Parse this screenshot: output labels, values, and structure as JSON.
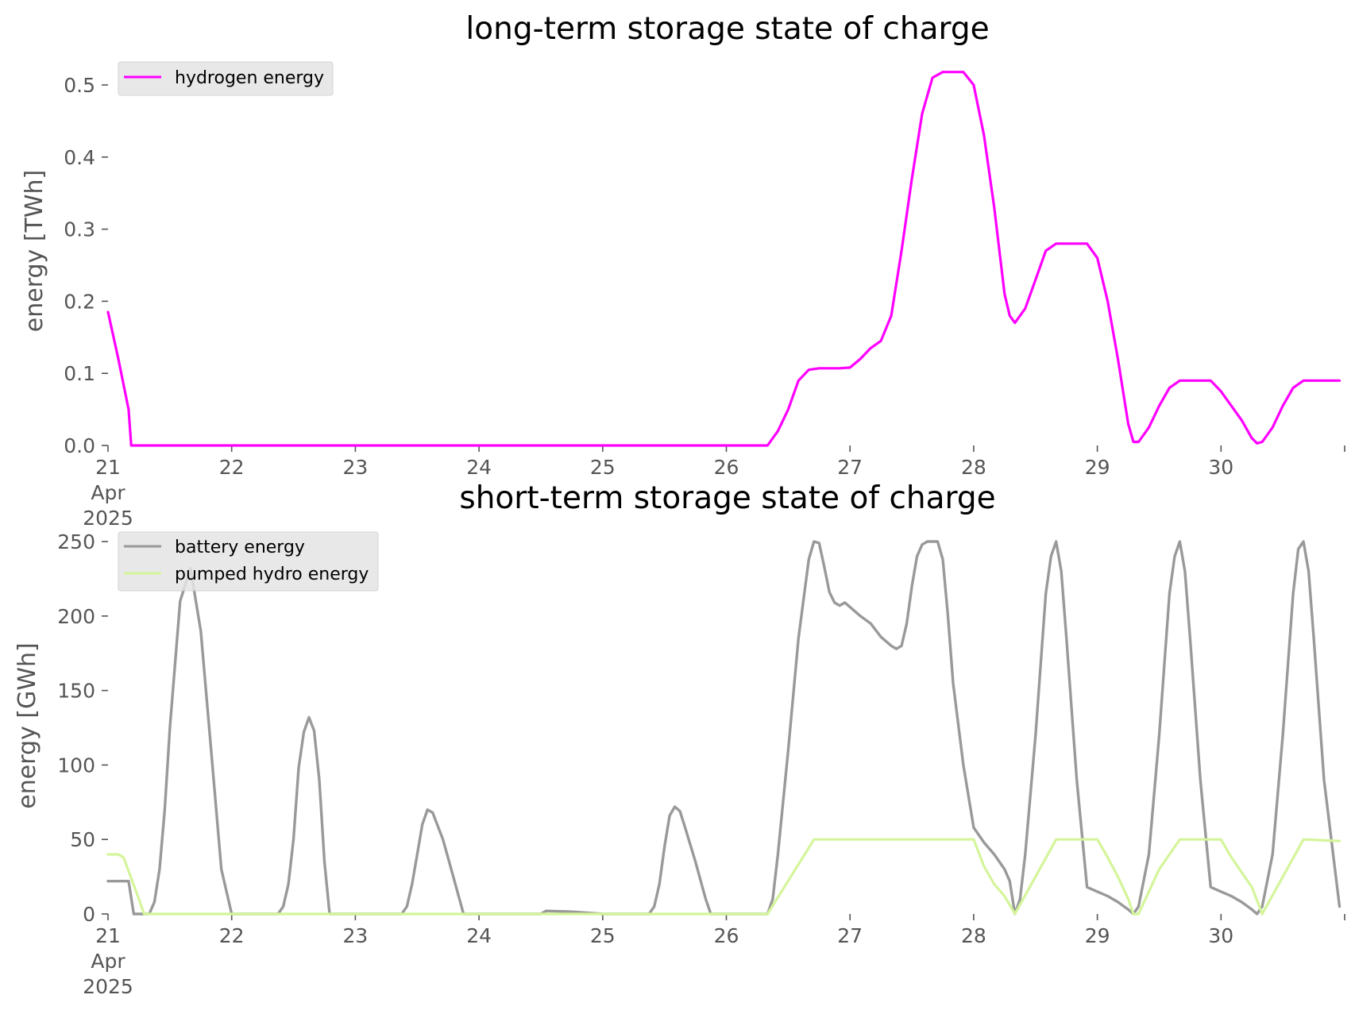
{
  "chart_data": [
    {
      "type": "line",
      "title": "long-term storage state of charge",
      "xlabel": "",
      "ylabel": "energy [TWh]",
      "x_ticks": [
        "21\nApr\n2025",
        "22",
        "23",
        "24",
        "25",
        "26",
        "27",
        "28",
        "29",
        "30"
      ],
      "xlim": [
        "2025-04-21 00:00",
        "2025-04-30 23:00"
      ],
      "ylim": [
        0,
        0.5
      ],
      "y_ticks": [
        "0.0",
        "0.1",
        "0.2",
        "0.3",
        "0.4",
        "0.5"
      ],
      "grid": false,
      "legend": "top-left",
      "series": [
        {
          "name": "hydrogen energy",
          "color": "#ff00ff",
          "points": [
            [
              "2025-04-21 00:00",
              0.185
            ],
            [
              "2025-04-21 02:00",
              0.12
            ],
            [
              "2025-04-21 04:00",
              0.05
            ],
            [
              "2025-04-21 04:30",
              0.0
            ],
            [
              "2025-04-26 08:00",
              0.0
            ],
            [
              "2025-04-26 10:00",
              0.02
            ],
            [
              "2025-04-26 12:00",
              0.05
            ],
            [
              "2025-04-26 14:00",
              0.09
            ],
            [
              "2025-04-26 16:00",
              0.105
            ],
            [
              "2025-04-26 18:00",
              0.107
            ],
            [
              "2025-04-26 20:00",
              0.107
            ],
            [
              "2025-04-26 22:00",
              0.107
            ],
            [
              "2025-04-27 00:00",
              0.108
            ],
            [
              "2025-04-27 02:00",
              0.12
            ],
            [
              "2025-04-27 04:00",
              0.135
            ],
            [
              "2025-04-27 06:00",
              0.145
            ],
            [
              "2025-04-27 08:00",
              0.18
            ],
            [
              "2025-04-27 10:00",
              0.27
            ],
            [
              "2025-04-27 12:00",
              0.37
            ],
            [
              "2025-04-27 14:00",
              0.46
            ],
            [
              "2025-04-27 16:00",
              0.51
            ],
            [
              "2025-04-27 18:00",
              0.518
            ],
            [
              "2025-04-27 20:00",
              0.518
            ],
            [
              "2025-04-27 22:00",
              0.518
            ],
            [
              "2025-04-28 00:00",
              0.5
            ],
            [
              "2025-04-28 02:00",
              0.43
            ],
            [
              "2025-04-28 04:00",
              0.33
            ],
            [
              "2025-04-28 06:00",
              0.21
            ],
            [
              "2025-04-28 07:00",
              0.18
            ],
            [
              "2025-04-28 08:00",
              0.17
            ],
            [
              "2025-04-28 10:00",
              0.19
            ],
            [
              "2025-04-28 12:00",
              0.23
            ],
            [
              "2025-04-28 14:00",
              0.27
            ],
            [
              "2025-04-28 16:00",
              0.28
            ],
            [
              "2025-04-28 18:00",
              0.28
            ],
            [
              "2025-04-28 20:00",
              0.28
            ],
            [
              "2025-04-28 22:00",
              0.28
            ],
            [
              "2025-04-29 00:00",
              0.26
            ],
            [
              "2025-04-29 02:00",
              0.2
            ],
            [
              "2025-04-29 04:00",
              0.12
            ],
            [
              "2025-04-29 06:00",
              0.03
            ],
            [
              "2025-04-29 07:00",
              0.005
            ],
            [
              "2025-04-29 08:00",
              0.005
            ],
            [
              "2025-04-29 10:00",
              0.025
            ],
            [
              "2025-04-29 12:00",
              0.055
            ],
            [
              "2025-04-29 14:00",
              0.08
            ],
            [
              "2025-04-29 16:00",
              0.09
            ],
            [
              "2025-04-29 18:00",
              0.09
            ],
            [
              "2025-04-29 20:00",
              0.09
            ],
            [
              "2025-04-29 22:00",
              0.09
            ],
            [
              "2025-04-30 00:00",
              0.075
            ],
            [
              "2025-04-30 02:00",
              0.055
            ],
            [
              "2025-04-30 04:00",
              0.035
            ],
            [
              "2025-04-30 06:00",
              0.01
            ],
            [
              "2025-04-30 07:00",
              0.003
            ],
            [
              "2025-04-30 08:00",
              0.005
            ],
            [
              "2025-04-30 10:00",
              0.025
            ],
            [
              "2025-04-30 12:00",
              0.055
            ],
            [
              "2025-04-30 14:00",
              0.08
            ],
            [
              "2025-04-30 16:00",
              0.09
            ],
            [
              "2025-04-30 18:00",
              0.09
            ],
            [
              "2025-04-30 20:00",
              0.09
            ],
            [
              "2025-04-30 23:00",
              0.09
            ]
          ]
        }
      ]
    },
    {
      "type": "line",
      "title": "short-term storage state of charge",
      "xlabel": "",
      "ylabel": "energy [GWh]",
      "x_ticks": [
        "21\nApr\n2025",
        "22",
        "23",
        "24",
        "25",
        "26",
        "27",
        "28",
        "29",
        "30"
      ],
      "xlim": [
        "2025-04-21 00:00",
        "2025-04-30 23:00"
      ],
      "ylim": [
        0,
        250
      ],
      "y_ticks": [
        "0",
        "50",
        "100",
        "150",
        "200",
        "250"
      ],
      "grid": false,
      "legend": "top-left",
      "series": [
        {
          "name": "battery energy",
          "color": "#999999",
          "points": [
            [
              "2025-04-21 00:00",
              22
            ],
            [
              "2025-04-21 04:00",
              22
            ],
            [
              "2025-04-21 05:00",
              0
            ],
            [
              "2025-04-21 08:00",
              0
            ],
            [
              "2025-04-21 09:00",
              8
            ],
            [
              "2025-04-21 10:00",
              30
            ],
            [
              "2025-04-21 11:00",
              70
            ],
            [
              "2025-04-21 12:00",
              125
            ],
            [
              "2025-04-21 14:00",
              210
            ],
            [
              "2025-04-21 16:00",
              232
            ],
            [
              "2025-04-21 18:00",
              190
            ],
            [
              "2025-04-21 20:00",
              110
            ],
            [
              "2025-04-21 22:00",
              30
            ],
            [
              "2025-04-22 00:00",
              0
            ],
            [
              "2025-04-22 09:00",
              0
            ],
            [
              "2025-04-22 10:00",
              5
            ],
            [
              "2025-04-22 11:00",
              20
            ],
            [
              "2025-04-22 12:00",
              50
            ],
            [
              "2025-04-22 13:00",
              98
            ],
            [
              "2025-04-22 14:00",
              122
            ],
            [
              "2025-04-22 15:00",
              132
            ],
            [
              "2025-04-22 16:00",
              123
            ],
            [
              "2025-04-22 17:00",
              90
            ],
            [
              "2025-04-22 18:00",
              35
            ],
            [
              "2025-04-22 19:00",
              0
            ],
            [
              "2025-04-23 09:00",
              0
            ],
            [
              "2025-04-23 10:00",
              5
            ],
            [
              "2025-04-23 11:00",
              20
            ],
            [
              "2025-04-23 12:00",
              40
            ],
            [
              "2025-04-23 13:00",
              60
            ],
            [
              "2025-04-23 14:00",
              70
            ],
            [
              "2025-04-23 15:00",
              68
            ],
            [
              "2025-04-23 17:00",
              50
            ],
            [
              "2025-04-23 19:00",
              25
            ],
            [
              "2025-04-23 21:00",
              0
            ],
            [
              "2025-04-24 12:00",
              0
            ],
            [
              "2025-04-24 13:00",
              2
            ],
            [
              "2025-04-24 18:00",
              1.5
            ],
            [
              "2025-04-25 00:00",
              0
            ],
            [
              "2025-04-25 09:00",
              0
            ],
            [
              "2025-04-25 10:00",
              5
            ],
            [
              "2025-04-25 11:00",
              20
            ],
            [
              "2025-04-25 12:00",
              45
            ],
            [
              "2025-04-25 13:00",
              66
            ],
            [
              "2025-04-25 14:00",
              72
            ],
            [
              "2025-04-25 15:00",
              69
            ],
            [
              "2025-04-25 16:00",
              58
            ],
            [
              "2025-04-25 18:00",
              35
            ],
            [
              "2025-04-25 20:00",
              10
            ],
            [
              "2025-04-25 21:00",
              0
            ],
            [
              "2025-04-26 08:00",
              0
            ],
            [
              "2025-04-26 09:00",
              10
            ],
            [
              "2025-04-26 10:00",
              40
            ],
            [
              "2025-04-26 12:00",
              110
            ],
            [
              "2025-04-26 14:00",
              185
            ],
            [
              "2025-04-26 16:00",
              238
            ],
            [
              "2025-04-26 17:00",
              250
            ],
            [
              "2025-04-26 18:00",
              249
            ],
            [
              "2025-04-26 19:00",
              233
            ],
            [
              "2025-04-26 20:00",
              216
            ],
            [
              "2025-04-26 21:00",
              209
            ],
            [
              "2025-04-26 22:00",
              207
            ],
            [
              "2025-04-26 23:00",
              209
            ],
            [
              "2025-04-27 02:00",
              200
            ],
            [
              "2025-04-27 04:00",
              195
            ],
            [
              "2025-04-27 06:00",
              186
            ],
            [
              "2025-04-27 08:00",
              180
            ],
            [
              "2025-04-27 09:00",
              178
            ],
            [
              "2025-04-27 10:00",
              180
            ],
            [
              "2025-04-27 11:00",
              195
            ],
            [
              "2025-04-27 12:00",
              220
            ],
            [
              "2025-04-27 13:00",
              240
            ],
            [
              "2025-04-27 14:00",
              248
            ],
            [
              "2025-04-27 15:00",
              250
            ],
            [
              "2025-04-27 17:00",
              250
            ],
            [
              "2025-04-27 18:00",
              238
            ],
            [
              "2025-04-27 19:00",
              200
            ],
            [
              "2025-04-27 20:00",
              155
            ],
            [
              "2025-04-27 22:00",
              100
            ],
            [
              "2025-04-28 00:00",
              58
            ],
            [
              "2025-04-28 02:00",
              48
            ],
            [
              "2025-04-28 04:00",
              40
            ],
            [
              "2025-04-28 06:00",
              30
            ],
            [
              "2025-04-28 07:00",
              22
            ],
            [
              "2025-04-28 08:00",
              0
            ],
            [
              "2025-04-28 09:00",
              10
            ],
            [
              "2025-04-28 10:00",
              40
            ],
            [
              "2025-04-28 12:00",
              120
            ],
            [
              "2025-04-28 14:00",
              215
            ],
            [
              "2025-04-28 15:00",
              240
            ],
            [
              "2025-04-28 16:00",
              250
            ],
            [
              "2025-04-28 17:00",
              230
            ],
            [
              "2025-04-28 18:00",
              185
            ],
            [
              "2025-04-28 20:00",
              90
            ],
            [
              "2025-04-28 22:00",
              18
            ],
            [
              "2025-04-29 00:00",
              15
            ],
            [
              "2025-04-29 02:00",
              12
            ],
            [
              "2025-04-29 04:00",
              8
            ],
            [
              "2025-04-29 06:00",
              3
            ],
            [
              "2025-04-29 07:00",
              0
            ],
            [
              "2025-04-29 08:00",
              5
            ],
            [
              "2025-04-29 10:00",
              40
            ],
            [
              "2025-04-29 12:00",
              120
            ],
            [
              "2025-04-29 14:00",
              215
            ],
            [
              "2025-04-29 15:00",
              240
            ],
            [
              "2025-04-29 16:00",
              250
            ],
            [
              "2025-04-29 17:00",
              230
            ],
            [
              "2025-04-29 18:00",
              185
            ],
            [
              "2025-04-29 20:00",
              90
            ],
            [
              "2025-04-29 22:00",
              18
            ],
            [
              "2025-04-30 00:00",
              15
            ],
            [
              "2025-04-30 02:00",
              12
            ],
            [
              "2025-04-30 04:00",
              8
            ],
            [
              "2025-04-30 06:00",
              3
            ],
            [
              "2025-04-30 07:00",
              0
            ],
            [
              "2025-04-30 08:00",
              5
            ],
            [
              "2025-04-30 10:00",
              40
            ],
            [
              "2025-04-30 12:00",
              120
            ],
            [
              "2025-04-30 14:00",
              215
            ],
            [
              "2025-04-30 15:00",
              245
            ],
            [
              "2025-04-30 16:00",
              250
            ],
            [
              "2025-04-30 17:00",
              230
            ],
            [
              "2025-04-30 18:00",
              185
            ],
            [
              "2025-04-30 20:00",
              90
            ],
            [
              "2025-04-30 23:00",
              5
            ]
          ]
        },
        {
          "name": "pumped hydro energy",
          "color": "#d4f59a",
          "points": [
            [
              "2025-04-21 00:00",
              40
            ],
            [
              "2025-04-21 01:00",
              40
            ],
            [
              "2025-04-21 02:00",
              40
            ],
            [
              "2025-04-21 03:00",
              38
            ],
            [
              "2025-04-21 06:00",
              10
            ],
            [
              "2025-04-21 07:00",
              0
            ],
            [
              "2025-04-26 08:00",
              0
            ],
            [
              "2025-04-26 17:00",
              50
            ],
            [
              "2025-04-28 00:00",
              50
            ],
            [
              "2025-04-28 02:00",
              32
            ],
            [
              "2025-04-28 04:00",
              20
            ],
            [
              "2025-04-28 06:00",
              12
            ],
            [
              "2025-04-28 08:00",
              0
            ],
            [
              "2025-04-28 16:00",
              50
            ],
            [
              "2025-04-29 00:00",
              50
            ],
            [
              "2025-04-29 02:00",
              38
            ],
            [
              "2025-04-29 04:00",
              25
            ],
            [
              "2025-04-29 06:00",
              10
            ],
            [
              "2025-04-29 07:00",
              0
            ],
            [
              "2025-04-29 08:00",
              0
            ],
            [
              "2025-04-29 12:00",
              30
            ],
            [
              "2025-04-29 16:00",
              50
            ],
            [
              "2025-04-30 00:00",
              50
            ],
            [
              "2025-04-30 02:00",
              38
            ],
            [
              "2025-04-30 06:00",
              18
            ],
            [
              "2025-04-30 08:00",
              0
            ],
            [
              "2025-04-30 16:00",
              50
            ],
            [
              "2025-04-30 23:00",
              49
            ]
          ]
        }
      ]
    }
  ]
}
